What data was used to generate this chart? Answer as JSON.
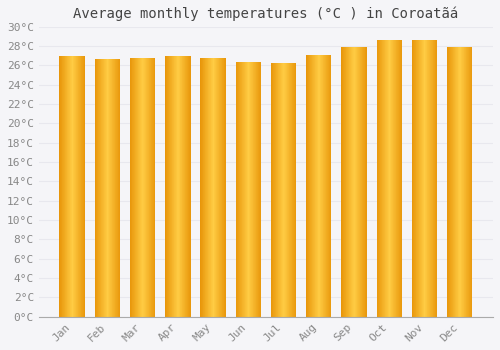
{
  "title": "Average monthly temperatures (°C ) in Coroatãá",
  "months": [
    "Jan",
    "Feb",
    "Mar",
    "Apr",
    "May",
    "Jun",
    "Jul",
    "Aug",
    "Sep",
    "Oct",
    "Nov",
    "Dec"
  ],
  "values": [
    27.0,
    26.7,
    26.8,
    27.0,
    26.8,
    26.4,
    26.3,
    27.1,
    27.9,
    28.6,
    28.6,
    27.9
  ],
  "bar_color_edge": "#E8960A",
  "bar_color_center": "#FFCC44",
  "ylim": [
    0,
    30
  ],
  "ytick_step": 2,
  "background_color": "#f5f5f8",
  "grid_color": "#e8e8ee",
  "title_fontsize": 10,
  "tick_fontsize": 8,
  "font_family": "monospace"
}
